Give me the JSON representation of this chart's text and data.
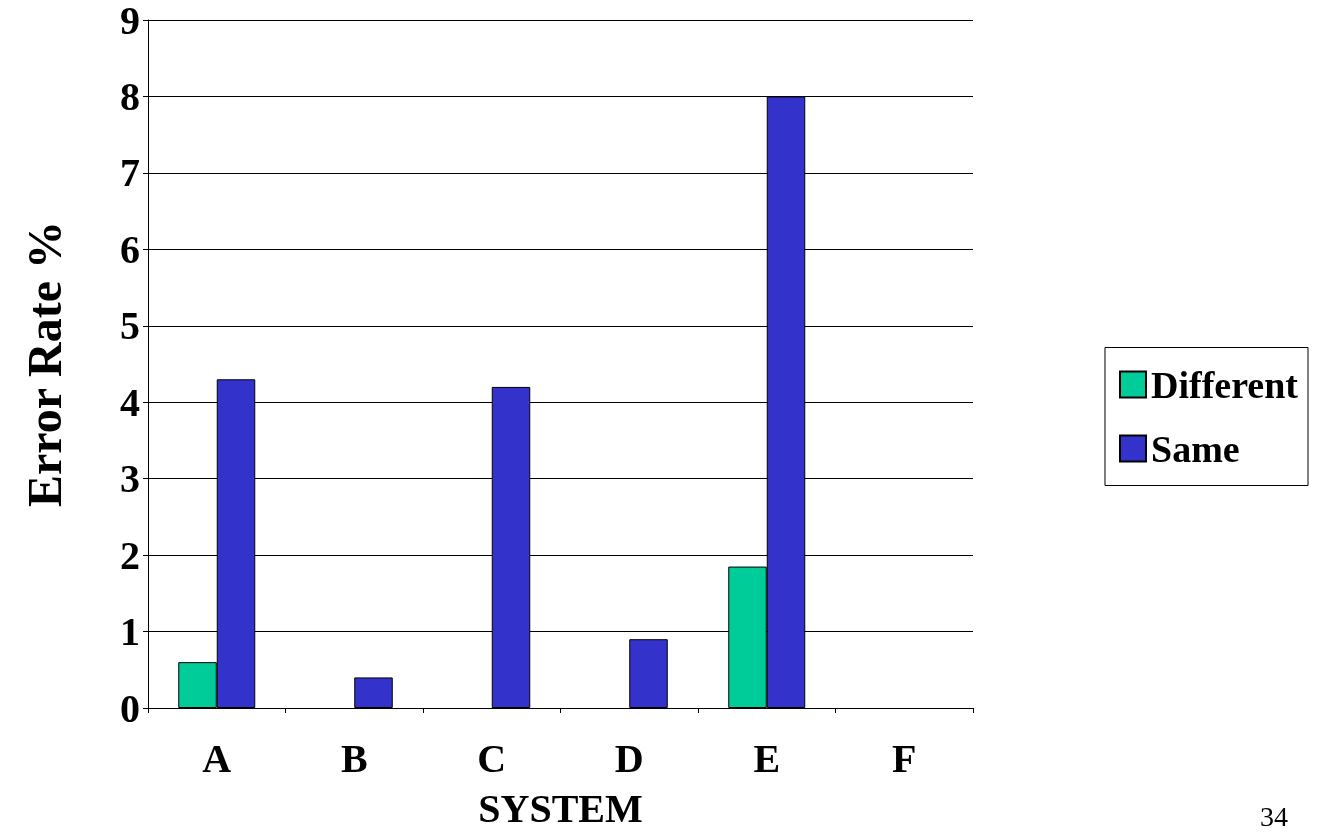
{
  "chart_data": {
    "type": "bar",
    "xlabel": "SYSTEM",
    "ylabel": "Error Rate %",
    "categories": [
      "A",
      "B",
      "C",
      "D",
      "E",
      "F"
    ],
    "series": [
      {
        "name": "Different",
        "color": "#00cc99",
        "values": [
          0.6,
          0,
          0,
          0,
          1.85,
          0
        ]
      },
      {
        "name": "Same",
        "color": "#3333cc",
        "values": [
          4.3,
          0.4,
          4.2,
          0.9,
          8.0,
          0
        ]
      }
    ],
    "ylim": [
      0,
      9
    ],
    "yticks": [
      0,
      1,
      2,
      3,
      4,
      5,
      6,
      7,
      8,
      9
    ],
    "grid": "y",
    "legend": "right",
    "annotations": [
      "34"
    ]
  }
}
